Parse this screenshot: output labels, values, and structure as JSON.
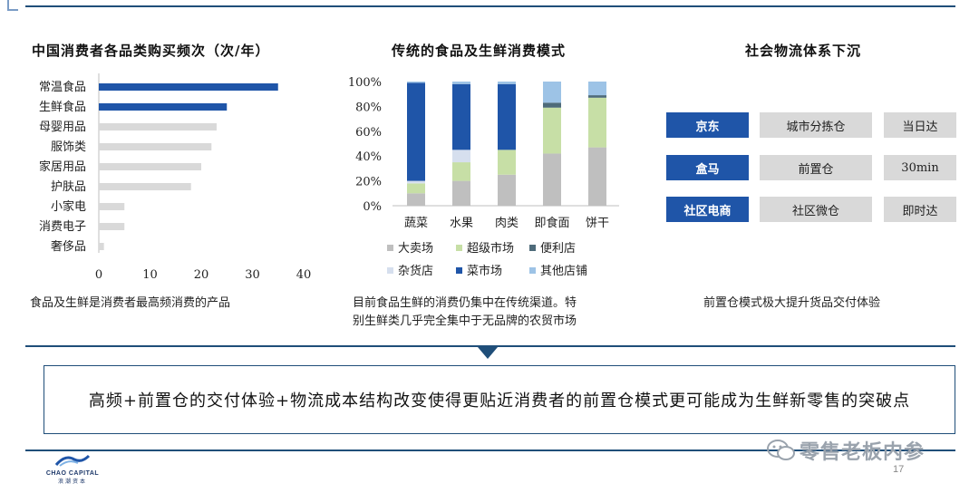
{
  "panel1": {
    "title": "中国消费者各品类购买频次（次/年）",
    "caption": "食品及生鲜是消费者最高频消费的产品"
  },
  "panel2": {
    "title": "传统的食品及生鲜消费模式",
    "caption_lines": [
      "目前食品生鲜的消费仍集中在传统渠道。特",
      "别生鲜类几乎完全集中于无品牌的农贸市场"
    ]
  },
  "panel3": {
    "title": "社会物流体系下沉",
    "caption": "前置仓模式极大提升货品交付体验",
    "rows": [
      {
        "name": "京东",
        "model": "城市分拣仓",
        "speed": "当日达"
      },
      {
        "name": "盒马",
        "model": "前置仓",
        "speed": "30min"
      },
      {
        "name": "社区电商",
        "model": "社区微仓",
        "speed": "即时达"
      }
    ],
    "colors": {
      "name_bg": "#1f55a8",
      "cell_bg": "#d9d9d9"
    }
  },
  "summary": "高频+前置仓的交付体验+物流成本结构改变使得更贴近消费者的前置仓模式更可能成为生鲜新零售的突破点",
  "footer": {
    "logo_text": "CHAO CAPITAL",
    "logo_sub": "浪潮资本",
    "page_number": "17",
    "watermark": "零售老板内参"
  },
  "chart_data": [
    {
      "type": "bar",
      "orientation": "horizontal",
      "categories": [
        "常温食品",
        "生鲜食品",
        "母婴用品",
        "服饰类",
        "家居用品",
        "护肤品",
        "小家电",
        "消费电子",
        "奢侈品"
      ],
      "values": [
        35,
        25,
        23,
        22,
        20,
        18,
        5,
        5,
        1
      ],
      "colors": [
        "#1f55a8",
        "#1f55a8",
        "#d9d9d9",
        "#d9d9d9",
        "#d9d9d9",
        "#d9d9d9",
        "#d9d9d9",
        "#d9d9d9",
        "#d9d9d9"
      ],
      "xlim": [
        0,
        40
      ],
      "xticks": [
        "0",
        "10",
        "20",
        "30",
        "40"
      ],
      "grid": false
    },
    {
      "type": "bar",
      "stacked": true,
      "categories": [
        "蔬菜",
        "水果",
        "肉类",
        "即食面",
        "饼干"
      ],
      "ylim": [
        0,
        100
      ],
      "yticks": [
        "0%",
        "20%",
        "40%",
        "60%",
        "80%",
        "100%"
      ],
      "legend_position": "bottom",
      "series": [
        {
          "name": "大卖场",
          "color": "#bfbfbf",
          "values": [
            10,
            20,
            25,
            42,
            47
          ]
        },
        {
          "name": "超级市场",
          "color": "#c7dfa6",
          "values": [
            8,
            15,
            20,
            37,
            40
          ]
        },
        {
          "name": "便利店",
          "color": "#4e6b7a",
          "values": [
            0,
            0,
            0,
            4,
            2
          ]
        },
        {
          "name": "杂货店",
          "color": "#d6dfee",
          "values": [
            2,
            10,
            0,
            0,
            0
          ]
        },
        {
          "name": "菜市场",
          "color": "#1f55a8",
          "values": [
            79,
            53,
            53,
            0,
            0
          ]
        },
        {
          "name": "其他店铺",
          "color": "#9dc3e6",
          "values": [
            1,
            2,
            2,
            17,
            11
          ]
        }
      ]
    }
  ]
}
